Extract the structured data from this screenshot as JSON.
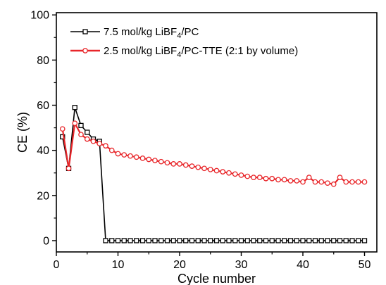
{
  "chart_data": {
    "type": "line",
    "xlabel": "Cycle number",
    "ylabel": "CE (%)",
    "xlim": [
      0,
      52
    ],
    "ylim": [
      -5,
      101
    ],
    "x_ticks": [
      0,
      10,
      20,
      30,
      40,
      50
    ],
    "y_ticks": [
      0,
      20,
      40,
      60,
      80,
      100
    ],
    "grid": false,
    "legend_position": "top-left",
    "series": [
      {
        "name": "7.5 mol/kg LiBF4/PC",
        "legend_parts": [
          "7.5 mol/kg LiBF",
          "4",
          "/PC"
        ],
        "color": "#000000",
        "marker": "square",
        "x": [
          1,
          2,
          3,
          4,
          5,
          6,
          7,
          8,
          9,
          10,
          11,
          12,
          13,
          14,
          15,
          16,
          17,
          18,
          19,
          20,
          21,
          22,
          23,
          24,
          25,
          26,
          27,
          28,
          29,
          30,
          31,
          32,
          33,
          34,
          35,
          36,
          37,
          38,
          39,
          40,
          41,
          42,
          43,
          44,
          45,
          46,
          47,
          48,
          49,
          50
        ],
        "y": [
          46,
          32,
          59,
          51,
          48,
          45,
          44,
          0,
          0,
          0,
          0,
          0,
          0,
          0,
          0,
          0,
          0,
          0,
          0,
          0,
          0,
          0,
          0,
          0,
          0,
          0,
          0,
          0,
          0,
          0,
          0,
          0,
          0,
          0,
          0,
          0,
          0,
          0,
          0,
          0,
          0,
          0,
          0,
          0,
          0,
          0,
          0,
          0,
          0,
          0
        ]
      },
      {
        "name": "2.5 mol/kg LiBF4/PC-TTE (2:1 by volume)",
        "legend_parts": [
          "2.5 mol/kg LiBF",
          "4",
          "/PC-TTE (2:1 by volume)"
        ],
        "color": "#e8262a",
        "marker": "circle",
        "x": [
          1,
          2,
          3,
          4,
          5,
          6,
          7,
          8,
          9,
          10,
          11,
          12,
          13,
          14,
          15,
          16,
          17,
          18,
          19,
          20,
          21,
          22,
          23,
          24,
          25,
          26,
          27,
          28,
          29,
          30,
          31,
          32,
          33,
          34,
          35,
          36,
          37,
          38,
          39,
          40,
          41,
          42,
          43,
          44,
          45,
          46,
          47,
          48,
          49,
          50
        ],
        "y": [
          49.5,
          32,
          52,
          47,
          45,
          44,
          43,
          42,
          40,
          38.5,
          38,
          37.5,
          37,
          36.5,
          36,
          35.5,
          35,
          34.5,
          34,
          34,
          33.5,
          33,
          32.5,
          32,
          31.5,
          31,
          30.5,
          30,
          29.5,
          29,
          28.5,
          28,
          28,
          27.5,
          27.5,
          27,
          27,
          26.5,
          26.5,
          26,
          28,
          26,
          26,
          25.5,
          25,
          28,
          26,
          26,
          26,
          26
        ]
      }
    ]
  }
}
